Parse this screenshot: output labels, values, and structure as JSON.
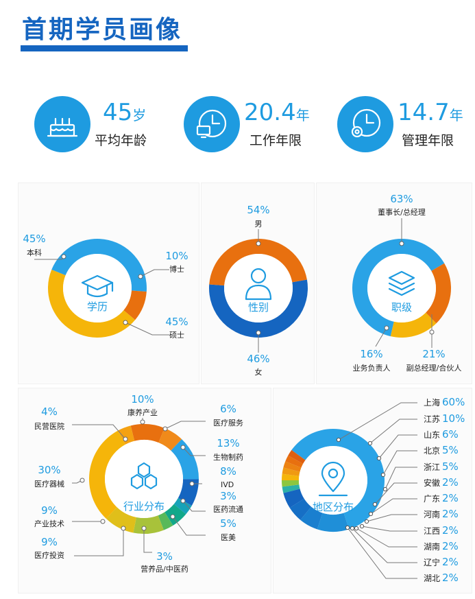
{
  "header": {
    "title": "首期学员画像"
  },
  "stats": [
    {
      "value": "45",
      "unit": "岁",
      "label": "平均年龄",
      "icon": "cake-icon"
    },
    {
      "value": "20.4",
      "unit": "年",
      "label": "工作年限",
      "icon": "computer-clock-icon"
    },
    {
      "value": "14.7",
      "unit": "年",
      "label": "管理年限",
      "icon": "gear-clock-icon"
    }
  ],
  "colors": {
    "brand": "#1565c0",
    "light_blue": "#1e9be0",
    "orange": "#e8700f",
    "yellow": "#f5b50a",
    "dark_blue": "#1565c0"
  },
  "chart_data": [
    {
      "type": "donut",
      "center_label": "学历",
      "icon": "graduation-cap-icon",
      "series": [
        {
          "name": "本科",
          "value": 45,
          "label": "45%",
          "color": "#2aa3e6"
        },
        {
          "name": "博士",
          "value": 10,
          "label": "10%",
          "color": "#e8700f"
        },
        {
          "name": "硕士",
          "value": 45,
          "label": "45%",
          "color": "#f5b50a"
        }
      ]
    },
    {
      "type": "donut",
      "center_label": "性别",
      "icon": "person-icon",
      "series": [
        {
          "name": "男",
          "value": 54,
          "label": "54%",
          "color": "#1565c0"
        },
        {
          "name": "女",
          "value": 46,
          "label": "46%",
          "color": "#e8700f"
        }
      ]
    },
    {
      "type": "donut",
      "center_label": "职级",
      "icon": "layers-icon",
      "series": [
        {
          "name": "董事长/总经理",
          "value": 63,
          "label": "63%",
          "color": "#2aa3e6"
        },
        {
          "name": "副总经理/合伙人",
          "value": 21,
          "label": "21%",
          "color": "#e8700f"
        },
        {
          "name": "业务负责人",
          "value": 16,
          "label": "16%",
          "color": "#f5b50a"
        }
      ]
    },
    {
      "type": "donut",
      "center_label": "行业分布",
      "icon": "hexagons-icon",
      "series": [
        {
          "name": "康养产业",
          "value": 10,
          "label": "10%",
          "color": "#e8700f"
        },
        {
          "name": "医疗服务",
          "value": 6,
          "label": "6%",
          "color": "#f08a1a"
        },
        {
          "name": "生物制药",
          "value": 13,
          "label": "13%",
          "color": "#2aa3e6"
        },
        {
          "name": "IVD",
          "value": 8,
          "label": "8%",
          "color": "#1565c0"
        },
        {
          "name": "医药流通",
          "value": 3,
          "label": "3%",
          "color": "#17a2b8"
        },
        {
          "name": "医美",
          "value": 5,
          "label": "5%",
          "color": "#12a88a"
        },
        {
          "name": "营养品/中医药",
          "value": 3,
          "label": "3%",
          "color": "#58b95a"
        },
        {
          "name": "医疗投资",
          "value": 9,
          "label": "9%",
          "color": "#a8c23a"
        },
        {
          "name": "产业技术",
          "value": 9,
          "label": "9%",
          "color": "#e0bf1a"
        },
        {
          "name": "医疗器械",
          "value": 30,
          "label": "30%",
          "color": "#f5b50a"
        },
        {
          "name": "民营医院",
          "value": 4,
          "label": "4%",
          "color": "#f4a112"
        }
      ]
    },
    {
      "type": "donut",
      "center_label": "地区分布",
      "icon": "map-pin-icon",
      "series": [
        {
          "name": "上海",
          "value": 60,
          "label": "60%",
          "color": "#2aa3e6"
        },
        {
          "name": "江苏",
          "value": 10,
          "label": "10%",
          "color": "#1f8fd8"
        },
        {
          "name": "山东",
          "value": 6,
          "label": "6%",
          "color": "#1a7fcf"
        },
        {
          "name": "北京",
          "value": 5,
          "label": "5%",
          "color": "#166fc5"
        },
        {
          "name": "浙江",
          "value": 5,
          "label": "5%",
          "color": "#1565c0"
        },
        {
          "name": "安徽",
          "value": 2,
          "label": "2%",
          "color": "#2bb0a8"
        },
        {
          "name": "广东",
          "value": 2,
          "label": "2%",
          "color": "#8cc63f"
        },
        {
          "name": "河南",
          "value": 2,
          "label": "2%",
          "color": "#f5b50a"
        },
        {
          "name": "江西",
          "value": 2,
          "label": "2%",
          "color": "#f09a12"
        },
        {
          "name": "湖南",
          "value": 2,
          "label": "2%",
          "color": "#ec8212"
        },
        {
          "name": "辽宁",
          "value": 2,
          "label": "2%",
          "color": "#e8700f"
        },
        {
          "name": "湖北",
          "value": 2,
          "label": "2%",
          "color": "#de5f10"
        }
      ]
    }
  ]
}
